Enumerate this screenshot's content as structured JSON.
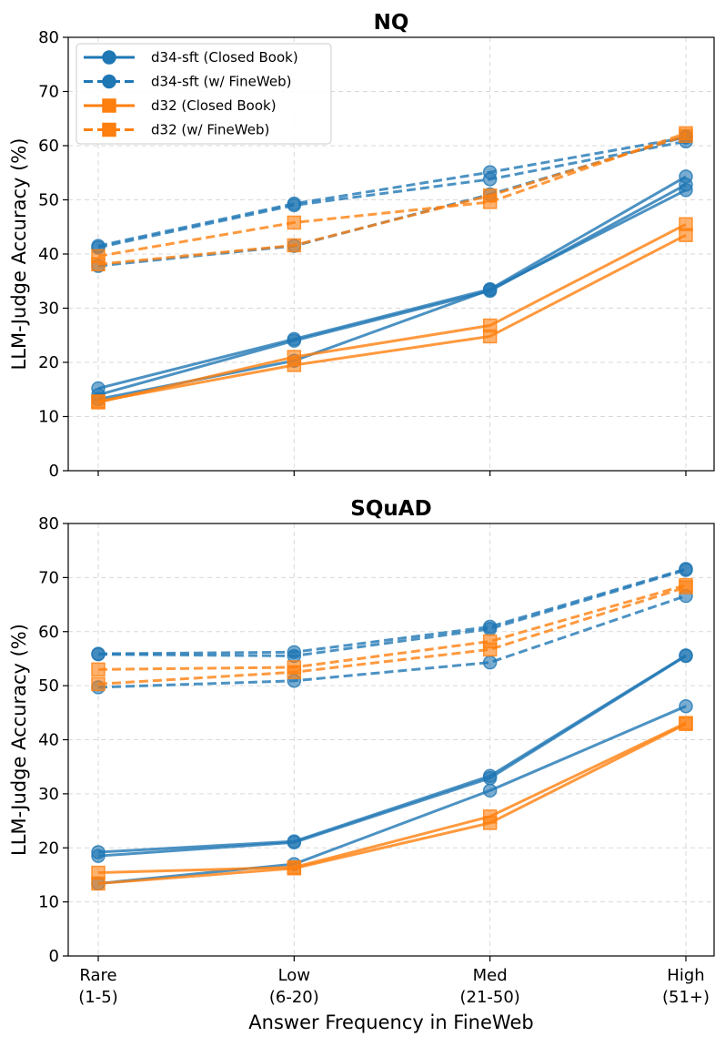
{
  "figure": {
    "xlabel": "Answer Frequency in FineWeb",
    "ylabel": "LLM-Judge Accuracy (%)",
    "categories": [
      "Rare",
      "Low",
      "Med",
      "High"
    ],
    "category_ranges": [
      "(1-5)",
      "(6-20)",
      "(21-50)",
      "(51+)"
    ],
    "colors": {
      "d34": "#1f77b4",
      "d32": "#ff7f0e"
    }
  },
  "legend": {
    "position": "upper-left",
    "entries": [
      {
        "label": "d34-sft (Closed Book)",
        "color": "#1f77b4",
        "style": "solid",
        "marker": "circle"
      },
      {
        "label": "d34-sft (w/ FineWeb)",
        "color": "#1f77b4",
        "style": "dashed",
        "marker": "circle"
      },
      {
        "label": "d32 (Closed Book)",
        "color": "#ff7f0e",
        "style": "solid",
        "marker": "square"
      },
      {
        "label": "d32 (w/ FineWeb)",
        "color": "#ff7f0e",
        "style": "dashed",
        "marker": "square"
      }
    ]
  },
  "chart_data": [
    {
      "type": "line",
      "title": "NQ",
      "xlabel": "",
      "ylabel": "LLM-Judge Accuracy (%)",
      "categories": [
        "Rare (1-5)",
        "Low (6-20)",
        "Med (21-50)",
        "High (51+)"
      ],
      "ylim": [
        0,
        80
      ],
      "yticks": [
        0,
        10,
        20,
        30,
        40,
        50,
        60,
        70,
        80
      ],
      "grid": true,
      "series": [
        {
          "name": "d34-sft (Closed Book)",
          "group": "d34",
          "style": "solid",
          "marker": "circle",
          "values": [
            15.2,
            24.3,
            33.5,
            54.3
          ]
        },
        {
          "name": "d34-sft (Closed Book)",
          "group": "d34",
          "style": "solid",
          "marker": "circle",
          "values": [
            14.0,
            24.0,
            33.2,
            52.8
          ]
        },
        {
          "name": "d34-sft (Closed Book)",
          "group": "d34",
          "style": "solid",
          "marker": "circle",
          "values": [
            13.2,
            20.3,
            33.4,
            51.8
          ]
        },
        {
          "name": "d34-sft (w/ FineWeb)",
          "group": "d34",
          "style": "dashed",
          "marker": "circle",
          "values": [
            41.5,
            49.3,
            55.1,
            61.5
          ]
        },
        {
          "name": "d34-sft (w/ FineWeb)",
          "group": "d34",
          "style": "dashed",
          "marker": "circle",
          "values": [
            41.2,
            49.0,
            53.8,
            60.8
          ]
        },
        {
          "name": "d34-sft (w/ FineWeb)",
          "group": "d34",
          "style": "dashed",
          "marker": "circle",
          "values": [
            37.8,
            41.5,
            51.0,
            61.7
          ]
        },
        {
          "name": "d32 (Closed Book)",
          "group": "d32",
          "style": "solid",
          "marker": "square",
          "values": [
            12.6,
            21.0,
            26.8,
            45.5
          ]
        },
        {
          "name": "d32 (Closed Book)",
          "group": "d32",
          "style": "solid",
          "marker": "square",
          "values": [
            12.8,
            19.5,
            24.8,
            43.5
          ]
        },
        {
          "name": "d32 (w/ FineWeb)",
          "group": "d32",
          "style": "dashed",
          "marker": "square",
          "values": [
            39.6,
            45.8,
            49.6,
            62.3
          ]
        },
        {
          "name": "d32 (w/ FineWeb)",
          "group": "d32",
          "style": "dashed",
          "marker": "square",
          "values": [
            38.1,
            41.6,
            50.8,
            61.8
          ]
        }
      ]
    },
    {
      "type": "line",
      "title": "SQuAD",
      "xlabel": "Answer Frequency in FineWeb",
      "ylabel": "LLM-Judge Accuracy (%)",
      "categories": [
        "Rare (1-5)",
        "Low (6-20)",
        "Med (21-50)",
        "High (51+)"
      ],
      "ylim": [
        0,
        80
      ],
      "yticks": [
        0,
        10,
        20,
        30,
        40,
        50,
        60,
        70,
        80
      ],
      "grid": true,
      "series": [
        {
          "name": "d34-sft (Closed Book)",
          "group": "d34",
          "style": "solid",
          "marker": "circle",
          "values": [
            19.2,
            21.2,
            33.3,
            55.6
          ]
        },
        {
          "name": "d34-sft (Closed Book)",
          "group": "d34",
          "style": "solid",
          "marker": "circle",
          "values": [
            18.5,
            21.0,
            32.9,
            55.5
          ]
        },
        {
          "name": "d34-sft (Closed Book)",
          "group": "d34",
          "style": "solid",
          "marker": "circle",
          "values": [
            13.4,
            17.0,
            30.6,
            46.2
          ]
        },
        {
          "name": "d34-sft (w/ FineWeb)",
          "group": "d34",
          "style": "dashed",
          "marker": "circle",
          "values": [
            55.9,
            56.2,
            60.9,
            71.6
          ]
        },
        {
          "name": "d34-sft (w/ FineWeb)",
          "group": "d34",
          "style": "dashed",
          "marker": "circle",
          "values": [
            55.8,
            55.5,
            60.5,
            71.4
          ]
        },
        {
          "name": "d34-sft (w/ FineWeb)",
          "group": "d34",
          "style": "dashed",
          "marker": "circle",
          "values": [
            49.7,
            50.9,
            54.3,
            66.6
          ]
        },
        {
          "name": "d32 (Closed Book)",
          "group": "d32",
          "style": "solid",
          "marker": "square",
          "values": [
            15.4,
            16.4,
            25.8,
            43.1
          ]
        },
        {
          "name": "d32 (Closed Book)",
          "group": "d32",
          "style": "solid",
          "marker": "square",
          "values": [
            13.4,
            16.2,
            24.6,
            42.9
          ]
        },
        {
          "name": "d32 (w/ FineWeb)",
          "group": "d32",
          "style": "dashed",
          "marker": "square",
          "values": [
            53.0,
            53.4,
            58.2,
            68.6
          ]
        },
        {
          "name": "d32 (w/ FineWeb)",
          "group": "d32",
          "style": "dashed",
          "marker": "square",
          "values": [
            50.3,
            52.5,
            56.7,
            68.2
          ]
        }
      ]
    }
  ]
}
